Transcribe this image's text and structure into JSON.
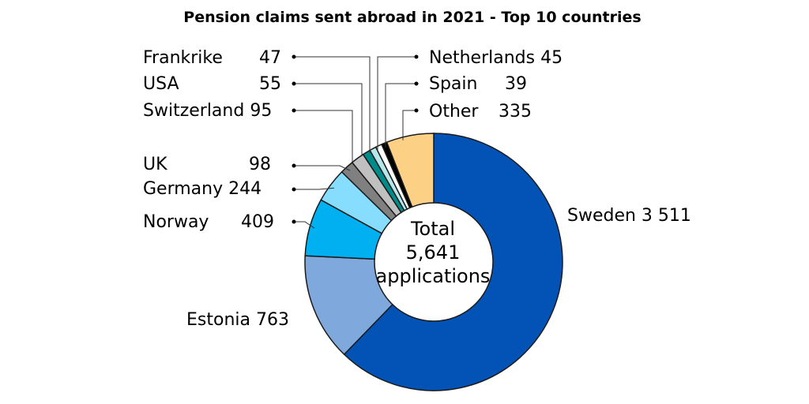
{
  "chart_data": {
    "type": "pie",
    "title": "Pension claims sent abroad in 2021 - Top 10 countries",
    "center_label": [
      "Total",
      "5,641",
      "applications"
    ],
    "slices": [
      {
        "name": "Sweden",
        "value": 3511,
        "label": "Sweden 3 511",
        "color": "#0353B7"
      },
      {
        "name": "Estonia",
        "value": 763,
        "label": "Estonia 763",
        "color": "#7FA8DC"
      },
      {
        "name": "Norway",
        "value": 409,
        "label_name": "Norway",
        "label_value": "409",
        "color": "#00B0F0"
      },
      {
        "name": "Germany",
        "value": 244,
        "label": "Germany 244",
        "color": "#87DDFD"
      },
      {
        "name": "UK",
        "value": 98,
        "label_name": "UK",
        "label_value": "98",
        "color": "#808080"
      },
      {
        "name": "Switzerland",
        "value": 95,
        "label": "Switzerland 95",
        "color": "#C0C0C0"
      },
      {
        "name": "USA",
        "value": 55,
        "label_name": "USA",
        "label_value": "55",
        "color": "#008B8B"
      },
      {
        "name": "Frankrike",
        "value": 47,
        "label_name": "Frankrike",
        "label_value": "47",
        "color": "#B4E6EA"
      },
      {
        "name": "Netherlands",
        "value": 45,
        "label": "Netherlands 45",
        "color": "#FFFFFF"
      },
      {
        "name": "Spain",
        "value": 39,
        "label_name": "Spain",
        "label_value": "39",
        "color": "#000000"
      },
      {
        "name": "Other",
        "value": 335,
        "label_name": "Other",
        "label_value": "335",
        "color": "#FCD185"
      }
    ]
  }
}
